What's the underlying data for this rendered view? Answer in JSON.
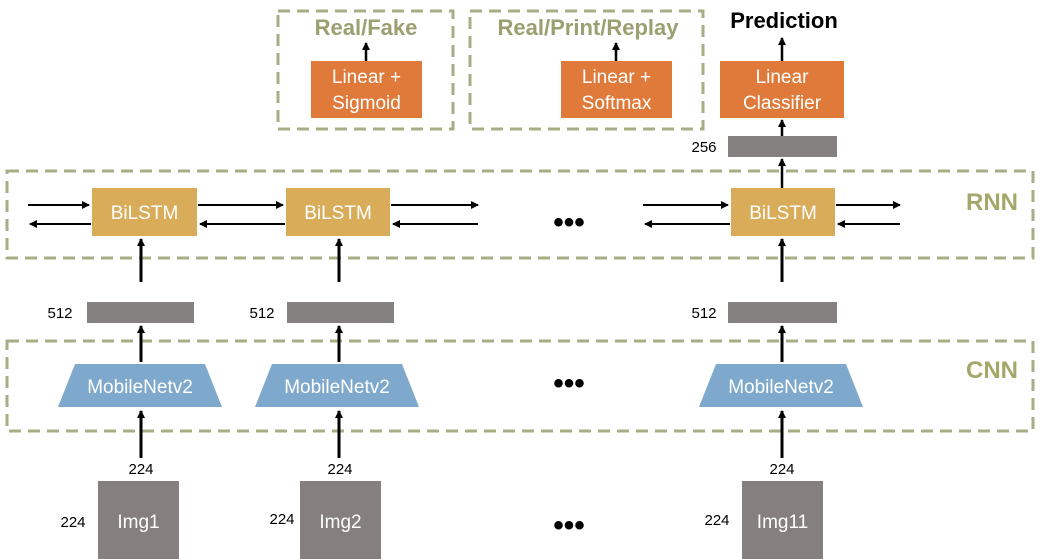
{
  "heads": {
    "real_fake": {
      "label": "Real/Fake",
      "box_line1": "Linear +",
      "box_line2": "Sigmoid"
    },
    "real_print_replay": {
      "label": "Real/Print/Replay",
      "box_line1": "Linear +",
      "box_line2": "Softmax"
    },
    "prediction": {
      "label": "Prediction",
      "box_line1": "Linear",
      "box_line2": "Classifier"
    }
  },
  "sections": {
    "rnn": "RNN",
    "cnn": "CNN"
  },
  "bilstm_label": "BiLSTM",
  "cnn_label": "MobileNetv2",
  "feature_dims": {
    "cnn_out": "512",
    "rnn_out": "256"
  },
  "input_dims": {
    "height": "224",
    "width": "224"
  },
  "images": [
    "Img1",
    "Img2",
    "Img11"
  ],
  "ellipsis": "•••",
  "colors": {
    "head_box": "#e07a3a",
    "bilstm_box": "#d9ac5a",
    "cnn_box": "#7fa9cc",
    "feature_bar": "#858181",
    "image_box": "#857f7e",
    "dashed_border": "#a9ad86",
    "section_label": "#a3a86a"
  }
}
